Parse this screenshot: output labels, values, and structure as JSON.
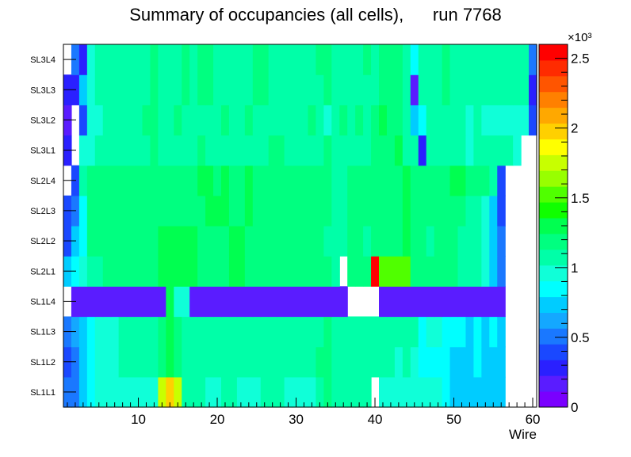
{
  "chart_data": {
    "type": "heatmap",
    "title": "Summary of occupancies (all cells),      run 7768",
    "xlabel": "Wire",
    "ylabel": "",
    "x_range": [
      0.5,
      60.5
    ],
    "x_ticks": [
      10,
      20,
      30,
      40,
      50,
      60
    ],
    "y_categories": [
      "SL1L1",
      "SL1L2",
      "SL1L3",
      "SL1L4",
      "SL2L1",
      "SL2L2",
      "SL2L3",
      "SL2L4",
      "SL3L1",
      "SL3L2",
      "SL3L3",
      "SL3L4"
    ],
    "z_range": [
      0,
      2600
    ],
    "z_multiplier_label": "×10³",
    "z_ticks": [
      {
        "value": 0,
        "label": "0"
      },
      {
        "value": 500,
        "label": "0.5"
      },
      {
        "value": 1000,
        "label": "1"
      },
      {
        "value": 1500,
        "label": "1.5"
      },
      {
        "value": 2000,
        "label": "2"
      },
      {
        "value": 2500,
        "label": "2.5"
      }
    ],
    "palette": [
      "#7a00ff",
      "#5a1cff",
      "#2a20ff",
      "#1a48ff",
      "#1a78ff",
      "#14a8ff",
      "#00ccff",
      "#00ffff",
      "#10ffd8",
      "#00ffa8",
      "#00ff80",
      "#00ff50",
      "#10ff00",
      "#50ff00",
      "#98ff00",
      "#c8ff00",
      "#ffff00",
      "#ffd000",
      "#ffa800",
      "#ff8000",
      "#ff5500",
      "#ff2b00",
      "#ff0000"
    ],
    "rows": [
      {
        "label": "SL1L1",
        "values": [
          550,
          550,
          700,
          850,
          950,
          950,
          950,
          950,
          950,
          950,
          950,
          1000,
          1800,
          2000,
          1800,
          1050,
          1050,
          1050,
          950,
          950,
          1050,
          1050,
          950,
          950,
          950,
          1050,
          1050,
          1050,
          950,
          950,
          950,
          950,
          1050,
          1150,
          1050,
          1050,
          1050,
          1050,
          1050,
          0,
          950,
          950,
          950,
          950,
          950,
          950,
          950,
          950,
          850,
          700,
          700,
          700,
          700,
          700,
          700,
          700,
          0,
          0,
          0,
          0
        ]
      },
      {
        "label": "SL1L2",
        "values": [
          450,
          550,
          700,
          850,
          950,
          950,
          950,
          1050,
          1050,
          1050,
          1050,
          1050,
          1150,
          1250,
          1150,
          1050,
          1050,
          1050,
          1050,
          1050,
          1050,
          1050,
          1050,
          1050,
          1050,
          1050,
          1050,
          1050,
          1050,
          1050,
          1050,
          1050,
          1150,
          1150,
          1050,
          1050,
          1050,
          1050,
          1050,
          1050,
          1050,
          1050,
          950,
          1050,
          950,
          850,
          850,
          850,
          850,
          700,
          700,
          700,
          850,
          700,
          700,
          700,
          0,
          0,
          0,
          0
        ]
      },
      {
        "label": "SL1L3",
        "values": [
          550,
          600,
          700,
          850,
          950,
          950,
          950,
          1050,
          1050,
          1050,
          1050,
          1050,
          1150,
          1350,
          1150,
          1050,
          1050,
          1050,
          1050,
          1050,
          1050,
          1050,
          1050,
          1050,
          1050,
          1050,
          1050,
          1050,
          1050,
          1050,
          1050,
          1050,
          1050,
          1150,
          1050,
          1050,
          1050,
          1050,
          1050,
          1050,
          1050,
          1050,
          1050,
          1050,
          1050,
          850,
          950,
          950,
          850,
          850,
          850,
          700,
          850,
          700,
          850,
          700,
          0,
          0,
          0,
          0
        ]
      },
      {
        "label": "SL1L4",
        "values": [
          0,
          150,
          150,
          150,
          150,
          150,
          150,
          150,
          150,
          150,
          150,
          150,
          150,
          1300,
          950,
          950,
          150,
          150,
          150,
          150,
          150,
          150,
          150,
          150,
          150,
          150,
          150,
          150,
          150,
          150,
          150,
          150,
          150,
          150,
          150,
          150,
          0,
          0,
          0,
          0,
          150,
          150,
          150,
          150,
          150,
          150,
          150,
          150,
          150,
          150,
          150,
          150,
          150,
          150,
          150,
          150,
          0,
          0,
          0,
          0
        ]
      },
      {
        "label": "SL2L1",
        "values": [
          700,
          850,
          950,
          1050,
          1050,
          1150,
          1150,
          1150,
          1150,
          1150,
          1150,
          1150,
          1250,
          1250,
          1250,
          1250,
          1250,
          1150,
          1150,
          1150,
          1150,
          1250,
          1250,
          1150,
          1150,
          1150,
          1150,
          1150,
          1150,
          1150,
          1150,
          1150,
          1150,
          1150,
          1050,
          0,
          1150,
          1150,
          1150,
          2600,
          1500,
          1500,
          1500,
          1500,
          1150,
          1150,
          1150,
          1150,
          1150,
          1150,
          1050,
          1050,
          1050,
          950,
          700,
          500,
          0,
          0,
          0,
          0
        ]
      },
      {
        "label": "SL2L2",
        "values": [
          450,
          700,
          850,
          1150,
          1150,
          1150,
          1150,
          1150,
          1150,
          1150,
          1150,
          1150,
          1250,
          1250,
          1250,
          1250,
          1250,
          1150,
          1150,
          1150,
          1150,
          1250,
          1250,
          1150,
          1150,
          1150,
          1150,
          1150,
          1150,
          1150,
          1150,
          1150,
          1150,
          1050,
          1050,
          1050,
          1150,
          1150,
          1050,
          1150,
          1150,
          1150,
          1150,
          1250,
          1150,
          1150,
          1050,
          1150,
          1150,
          1150,
          1050,
          1050,
          1050,
          950,
          700,
          500,
          0,
          0,
          0,
          0
        ]
      },
      {
        "label": "SL2L3",
        "values": [
          350,
          550,
          850,
          1150,
          1150,
          1150,
          1150,
          1150,
          1150,
          1150,
          1150,
          1150,
          1150,
          1150,
          1150,
          1150,
          1150,
          1150,
          1250,
          1250,
          1250,
          1150,
          1150,
          1250,
          1150,
          1150,
          1150,
          1150,
          1150,
          1150,
          1150,
          1150,
          1150,
          1150,
          1050,
          1050,
          1150,
          1150,
          1150,
          1150,
          1150,
          1150,
          1150,
          1250,
          1150,
          1150,
          1150,
          1150,
          1150,
          1150,
          1150,
          1050,
          1050,
          950,
          700,
          400,
          0,
          0,
          0,
          0
        ]
      },
      {
        "label": "SL2L4",
        "values": [
          0,
          450,
          1050,
          1150,
          1150,
          1150,
          1150,
          1150,
          1150,
          1150,
          1150,
          1150,
          1150,
          1150,
          1150,
          1150,
          1150,
          1250,
          1250,
          1150,
          1250,
          1150,
          1150,
          1250,
          1150,
          1150,
          1150,
          1150,
          1150,
          1150,
          1150,
          1150,
          1150,
          1150,
          1050,
          1050,
          1150,
          1150,
          1150,
          1150,
          1150,
          1150,
          1150,
          1250,
          1150,
          1150,
          1150,
          1150,
          1150,
          1250,
          1250,
          1150,
          1150,
          1150,
          1050,
          400,
          0,
          0,
          0,
          0
        ]
      },
      {
        "label": "SL3L1",
        "values": [
          300,
          0,
          950,
          950,
          1050,
          1050,
          1050,
          1050,
          1050,
          1050,
          1050,
          1150,
          1050,
          1050,
          1050,
          1050,
          1050,
          1150,
          1050,
          1050,
          1050,
          1050,
          1050,
          1050,
          1050,
          1050,
          1150,
          1150,
          1050,
          1050,
          1050,
          1050,
          1050,
          1150,
          1050,
          1050,
          1050,
          1050,
          1050,
          1150,
          1150,
          1150,
          1250,
          1050,
          1050,
          300,
          1050,
          1050,
          1050,
          1050,
          1050,
          950,
          1050,
          1050,
          1050,
          1050,
          1050,
          950,
          0,
          0
        ]
      },
      {
        "label": "SL3L2",
        "values": [
          150,
          0,
          400,
          950,
          950,
          1050,
          1050,
          1050,
          1050,
          1050,
          1150,
          1150,
          1050,
          1050,
          1150,
          1050,
          1050,
          1050,
          1050,
          1050,
          1150,
          1050,
          1050,
          1150,
          1050,
          1050,
          1050,
          1050,
          1050,
          1050,
          1050,
          1150,
          1050,
          950,
          1050,
          1150,
          1050,
          1150,
          1050,
          1150,
          1350,
          1150,
          1150,
          1050,
          700,
          850,
          1050,
          1050,
          1050,
          1050,
          1050,
          950,
          1050,
          950,
          950,
          950,
          950,
          950,
          950,
          400
        ]
      },
      {
        "label": "SL3L3",
        "values": [
          300,
          300,
          700,
          950,
          1050,
          1050,
          1050,
          1050,
          1050,
          1050,
          1050,
          1150,
          1050,
          1050,
          1050,
          1150,
          1050,
          1150,
          1150,
          1050,
          1050,
          1050,
          1050,
          1050,
          1150,
          1150,
          1050,
          1050,
          1050,
          1050,
          1050,
          1050,
          1050,
          1150,
          1050,
          1050,
          1050,
          1050,
          1050,
          1050,
          1150,
          1150,
          1150,
          1050,
          150,
          1050,
          1050,
          1050,
          1150,
          1050,
          1050,
          1050,
          1050,
          1050,
          1050,
          1050,
          1050,
          1050,
          1050,
          300
        ]
      },
      {
        "label": "SL3L4",
        "values": [
          0,
          550,
          300,
          950,
          1050,
          1050,
          1050,
          1050,
          1050,
          1050,
          1050,
          1150,
          1050,
          1050,
          1050,
          1150,
          1050,
          1150,
          1150,
          1050,
          1050,
          1050,
          1050,
          1050,
          1150,
          1150,
          1050,
          1050,
          1050,
          1050,
          1050,
          1050,
          1150,
          1150,
          1050,
          1050,
          1050,
          1050,
          1150,
          1050,
          1150,
          1150,
          1150,
          1050,
          850,
          1050,
          1050,
          1050,
          1150,
          1050,
          1050,
          1050,
          1050,
          1050,
          1050,
          1050,
          1050,
          1050,
          1050,
          550
        ]
      }
    ]
  }
}
